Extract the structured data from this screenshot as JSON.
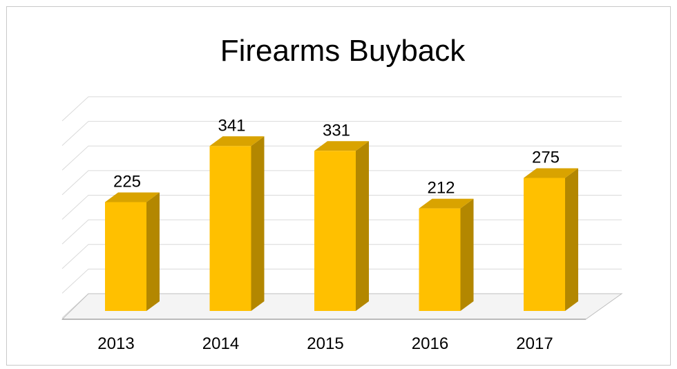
{
  "chart_data": {
    "type": "bar",
    "title": "Firearms Buyback",
    "categories": [
      "2013",
      "2014",
      "2015",
      "2016",
      "2017"
    ],
    "values": [
      225,
      341,
      331,
      212,
      275
    ],
    "xlabel": "",
    "ylabel": "",
    "ylim": [
      0,
      400
    ],
    "grid": true,
    "legend": "none",
    "style": "3d-column",
    "colors": {
      "bar_front": "#FFC000",
      "bar_side": "#B38700",
      "bar_top": "#D9A300",
      "gridline": "#d9d9d9",
      "floor": "#bfbfbf"
    }
  }
}
